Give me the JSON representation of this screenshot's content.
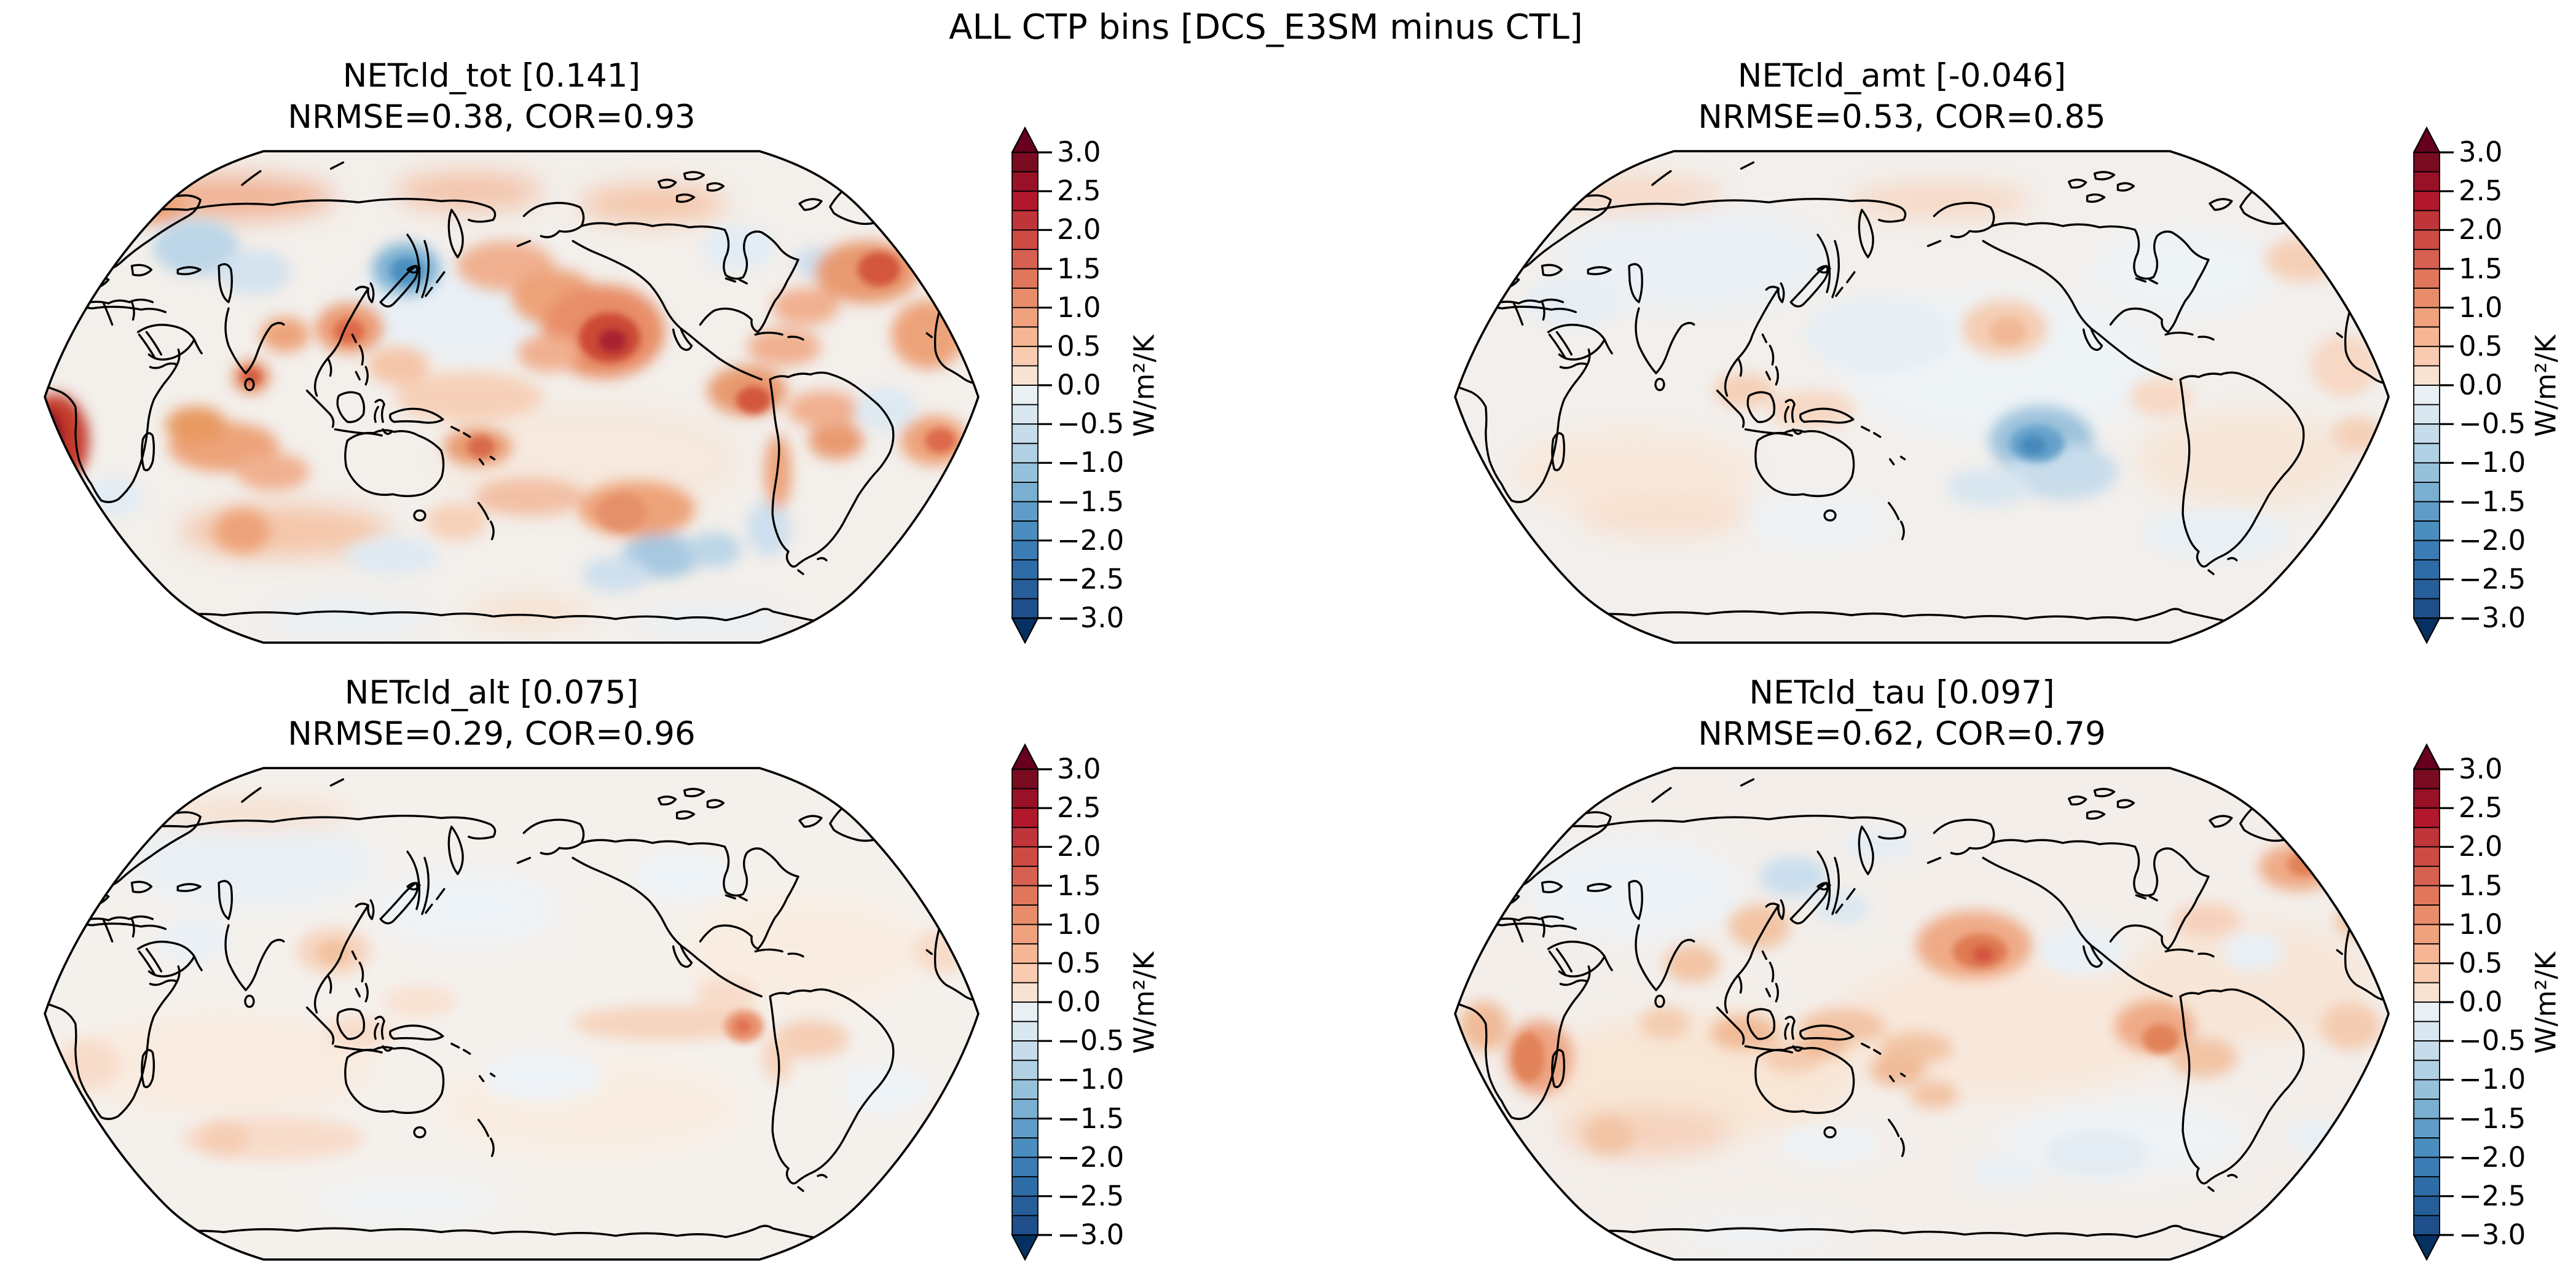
{
  "figure": {
    "suptitle": "ALL CTP bins [DCS_E3SM minus CTL]"
  },
  "panels": [
    {
      "title": "NETcld_tot [0.141]",
      "stats": "NRMSE=0.38, COR=0.93"
    },
    {
      "title": "NETcld_amt [-0.046]",
      "stats": "NRMSE=0.53, COR=0.85"
    },
    {
      "title": "NETcld_alt [0.075]",
      "stats": "NRMSE=0.29, COR=0.96"
    },
    {
      "title": "NETcld_tau [0.097]",
      "stats": "NRMSE=0.62, COR=0.79"
    }
  ],
  "colorbar": {
    "unit": "W/m²/K",
    "ticks": [
      "3.0",
      "2.5",
      "2.0",
      "1.5",
      "1.0",
      "0.5",
      "0.0",
      "−0.5",
      "−1.0",
      "−1.5",
      "−2.0",
      "−2.5",
      "−3.0"
    ],
    "cell_colors": [
      "#7a0c22",
      "#981127",
      "#b2182b",
      "#c03539",
      "#cc4c44",
      "#d66150",
      "#e0765c",
      "#e98c6b",
      "#f0a17e",
      "#f6b695",
      "#f9cbb0",
      "#f8e2d2",
      "#e9f0f4",
      "#d9e7f1",
      "#c6dcea",
      "#b0d0e3",
      "#96c1db",
      "#79afd1",
      "#5f9dc8",
      "#4b8dbe",
      "#3b7cb4",
      "#2e6ca7",
      "#265e9a",
      "#1f4f8a"
    ],
    "extend_colors": {
      "top": "#67001f",
      "bottom": "#053061"
    }
  },
  "chart_data": {
    "type": "heatmap",
    "subtype": "global-map-contour-grid-2x2",
    "projection": "Robinson, Pacific-centered (central longitude 180)",
    "colormap": "RdBu_r (discrete, 0.25 W/m2/K bins)",
    "suptitle": "ALL CTP bins [DCS_E3SM minus CTL]",
    "levels": {
      "min": -3.0,
      "max": 3.0,
      "step": 0.25,
      "extend": "both"
    },
    "colorbar_ticks": [
      3.0,
      2.5,
      2.0,
      1.5,
      1.0,
      0.5,
      0.0,
      -0.5,
      -1.0,
      -1.5,
      -2.0,
      -2.5,
      -3.0
    ],
    "units": "W/m²/K",
    "panels": [
      {
        "position": "top-left",
        "variable": "NETcld_tot",
        "global_mean": 0.141,
        "nrmse": 0.38,
        "cor": 0.93,
        "notable_features": [
          "largest amplitude of the four panels, widespread ±1 anomalies",
          "strong positive anomaly (~+2 to +3) in NE subtropical Pacific off Baja California",
          "dark positive spot (~+3) off equatorial West Africa at the map's left edge",
          "negative anomaly (~-2) over Sea of Okhotsk / NW Pacific",
          "positive anomalies: N Atlantic south of Greenland, Central America, Coral Sea/Fiji, Indian Ocean, S mid-latitude band",
          "negative patches: eastern Europe/Urals, SE Pacific, south of Australia"
        ]
      },
      {
        "position": "top-right",
        "variable": "NETcld_amt",
        "global_mean": -0.046,
        "nrmse": 0.53,
        "cor": 0.85,
        "notable_features": [
          "generally weak anomalies (within ±0.5)",
          "distinct negative anomaly (~-1.5) in the SE tropical Pacific",
          "mild positives along Arctic coast, NE Pacific and equatorial W Pacific"
        ]
      },
      {
        "position": "bottom-left",
        "variable": "NETcld_alt",
        "global_mean": 0.075,
        "nrmse": 0.29,
        "cor": 0.96,
        "notable_features": [
          "weakest amplitude panel, nearly all within ±0.5",
          "mild positive band along the east Pacific ITCZ with a small stronger spot over NW South America",
          "faint positives over China and the southern Indian Ocean; faint negatives over northern Asia"
        ]
      },
      {
        "position": "bottom-right",
        "variable": "NETcld_tau",
        "global_mean": 0.097,
        "nrmse": 0.62,
        "cor": 0.79,
        "notable_features": [
          "moderate positive anomaly (~+1.5) in the central North Pacific",
          "positives over western Indian Ocean / E African coast, Maritime Continent, Central America-Colombia, near Greenland",
          "weak negatives NW Pacific (north of Japan) and SE Pacific"
        ]
      }
    ]
  }
}
